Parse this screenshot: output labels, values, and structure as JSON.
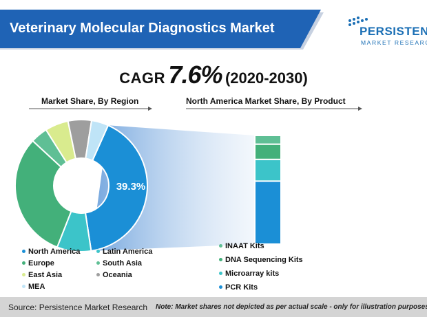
{
  "header": {
    "title": "Veterinary Molecular Diagnostics Market",
    "banner_color": "#1f63b5"
  },
  "logo": {
    "name": "PERSISTENCE",
    "tagline": "MARKET RESEARCH",
    "color": "#1b6fb5"
  },
  "cagr": {
    "label": "CAGR",
    "value": "7.6%",
    "period": "(2020-2030)"
  },
  "sections": {
    "left_title": "Market Share, By Region",
    "right_title": "North America Market Share, By Product"
  },
  "chart_data": [
    {
      "type": "pie",
      "variant": "donut",
      "title": "Market Share, By Region",
      "categories": [
        "North America",
        "Latin America",
        "Europe",
        "South Asia",
        "East Asia",
        "Oceania",
        "MEA"
      ],
      "values": [
        39.3,
        8.0,
        29.7,
        4.0,
        5.5,
        5.5,
        4.0
      ],
      "colors": [
        "#1b8fd6",
        "#3cc4c9",
        "#43b07a",
        "#5fbf95",
        "#d9eb8e",
        "#9e9e9e",
        "#bfe4f7"
      ],
      "data_labels": [
        "39.3%"
      ],
      "legend_position": "bottom"
    },
    {
      "type": "bar",
      "variant": "100% stacked",
      "title": "North America Market Share, By Product",
      "categories": [
        "PCR Kits",
        "Microarray kits",
        "DNA Sequencing Kits",
        "INAAT Kits"
      ],
      "values": [
        58,
        20,
        14,
        8
      ],
      "colors": [
        "#1b8fd6",
        "#3cc4c9",
        "#43b07a",
        "#5fbf95"
      ],
      "legend_position": "bottom"
    }
  ],
  "legend_left": [
    {
      "label": "North America",
      "color": "#1b8fd6"
    },
    {
      "label": "Latin America",
      "color": "#3cc4c9"
    },
    {
      "label": "Europe",
      "color": "#43b07a"
    },
    {
      "label": "South Asia",
      "color": "#5fbf95"
    },
    {
      "label": "East Asia",
      "color": "#d9eb8e"
    },
    {
      "label": "Oceania",
      "color": "#9e9e9e"
    },
    {
      "label": "MEA",
      "color": "#bfe4f7"
    }
  ],
  "legend_right": [
    {
      "label": "INAAT Kits",
      "color": "#5fbf95"
    },
    {
      "label": "DNA Sequencing Kits",
      "color": "#43b07a"
    },
    {
      "label": "Microarray kits",
      "color": "#3cc4c9"
    },
    {
      "label": "PCR Kits",
      "color": "#1b8fd6"
    }
  ],
  "footer": {
    "source": "Source: Persistence Market Research",
    "note": "Note: Market shares not depicted as per actual scale - only for illustration purposes"
  }
}
